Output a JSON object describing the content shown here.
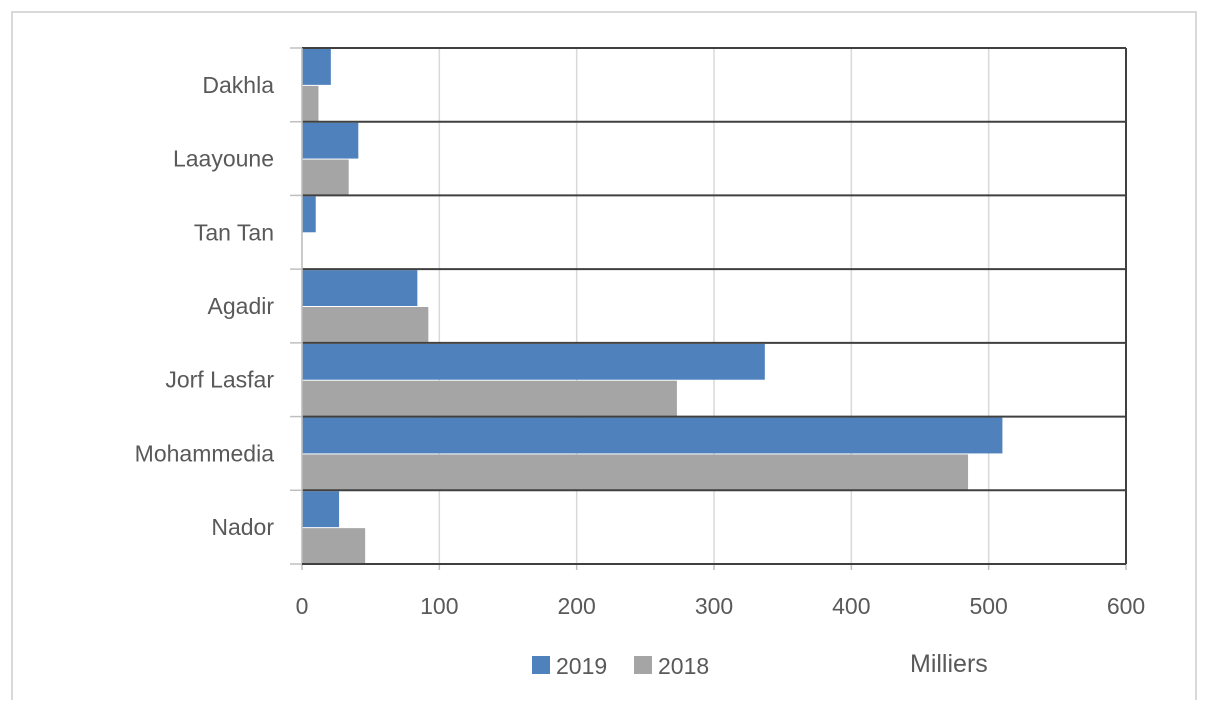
{
  "chart_data": {
    "type": "bar",
    "orientation": "horizontal",
    "categories": [
      "Dakhla",
      "Laayoune",
      "Tan Tan",
      "Agadir",
      "Jorf Lasfar",
      "Mohammedia",
      "Nador"
    ],
    "series": [
      {
        "name": "2019",
        "color": "#4f81bd",
        "values": [
          21,
          41,
          10,
          84,
          337,
          510,
          27
        ]
      },
      {
        "name": "2018",
        "color": "#a5a5a5",
        "values": [
          12,
          34,
          0,
          92,
          273,
          485,
          46
        ]
      }
    ],
    "xlim": [
      0,
      600
    ],
    "xticks": [
      0,
      100,
      200,
      300,
      400,
      500,
      600
    ],
    "xlabel": "Milliers",
    "ylabel": "",
    "title": "",
    "grid": true,
    "legend": "bottom"
  }
}
